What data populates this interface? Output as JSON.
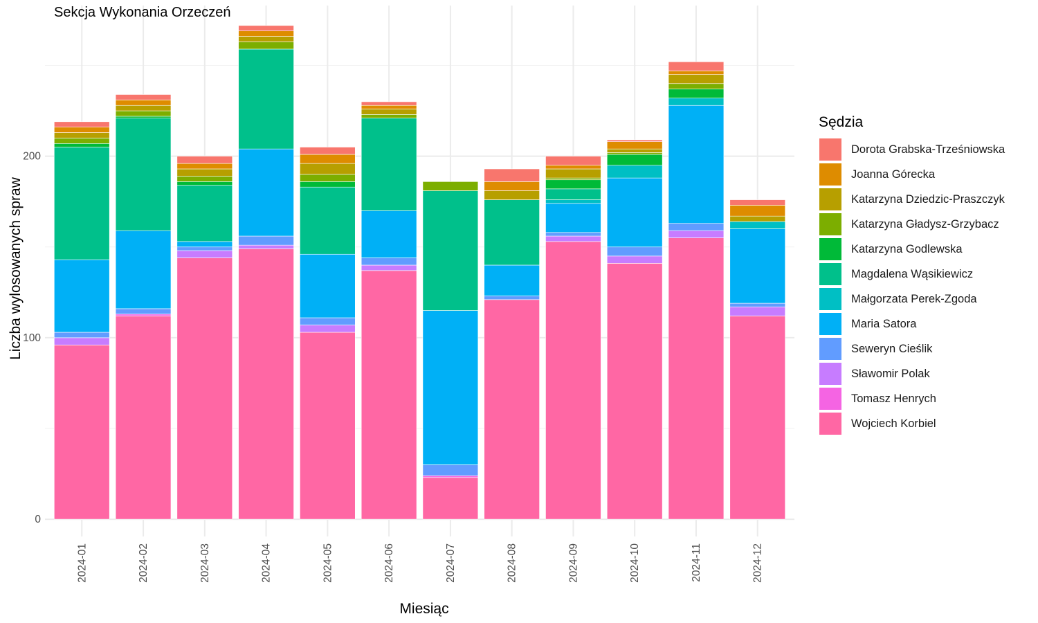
{
  "chart_data": {
    "type": "bar",
    "stacked": true,
    "title": "Sekcja Wykonania Orzeczeń",
    "xlabel": "Miesiąc",
    "ylabel": "Liczba wylosowanych spraw",
    "ylim": [
      -9.5,
      283
    ],
    "yticks": [
      0,
      100,
      200
    ],
    "grid": true,
    "legend_title": "Sędzia",
    "legend_position": "right",
    "categories": [
      "2024-01",
      "2024-02",
      "2024-03",
      "2024-04",
      "2024-05",
      "2024-06",
      "2024-07",
      "2024-08",
      "2024-09",
      "2024-10",
      "2024-11",
      "2024-12"
    ],
    "series": [
      {
        "name": "Wojciech Korbiel",
        "color": "#FF67A4",
        "values": [
          96,
          112,
          144,
          149,
          103,
          137,
          23,
          121,
          153,
          141,
          155,
          112
        ]
      },
      {
        "name": "Tomasz Henrych",
        "color": "#F564E3",
        "values": [
          0,
          1,
          0,
          0,
          0,
          0,
          1,
          0,
          0,
          0,
          0,
          0
        ]
      },
      {
        "name": "Sławomir Polak",
        "color": "#C77CFF",
        "values": [
          4,
          0,
          4,
          2,
          4,
          3,
          0,
          0,
          3,
          4,
          4,
          5
        ]
      },
      {
        "name": "Seweryn Cieślik",
        "color": "#619CFF",
        "values": [
          3,
          3,
          2,
          5,
          4,
          4,
          6,
          2,
          2,
          5,
          4,
          2
        ]
      },
      {
        "name": "Maria Satora",
        "color": "#00B0F6",
        "values": [
          40,
          43,
          3,
          48,
          35,
          26,
          85,
          17,
          16,
          38,
          65,
          41
        ]
      },
      {
        "name": "Małgorzata Perek-Zgoda",
        "color": "#00BFC4",
        "values": [
          0,
          0,
          0,
          0,
          0,
          0,
          0,
          0,
          2,
          7,
          4,
          4
        ]
      },
      {
        "name": "Magdalena Wąsikiewicz",
        "color": "#00C08B",
        "values": [
          62,
          62,
          31,
          55,
          37,
          51,
          66,
          36,
          6,
          0,
          0,
          0
        ]
      },
      {
        "name": "Katarzyna Godlewska",
        "color": "#00BA38",
        "values": [
          2,
          1,
          2,
          0,
          3,
          0,
          0,
          0,
          5,
          6,
          5,
          0
        ]
      },
      {
        "name": "Katarzyna Gładysz-Grzybacz",
        "color": "#7CAE00",
        "values": [
          3,
          3,
          3,
          4,
          4,
          2,
          5,
          0,
          1,
          1,
          3,
          0
        ]
      },
      {
        "name": "Katarzyna Dziedzic-Praszczyk",
        "color": "#B79F00",
        "values": [
          3,
          3,
          4,
          3,
          6,
          3,
          0,
          5,
          5,
          2,
          5,
          3
        ]
      },
      {
        "name": "Joanna Górecka",
        "color": "#DE8C00",
        "values": [
          3,
          3,
          3,
          3,
          5,
          2,
          0,
          5,
          2,
          4,
          2,
          6
        ]
      },
      {
        "name": "Dorota Grabska-Trześniowska",
        "color": "#F8766D",
        "values": [
          3,
          3,
          4,
          3,
          4,
          2,
          0,
          7,
          5,
          1,
          5,
          3
        ]
      }
    ],
    "legend_order": [
      "Dorota Grabska-Trześniowska",
      "Joanna Górecka",
      "Katarzyna Dziedzic-Praszczyk",
      "Katarzyna Gładysz-Grzybacz",
      "Katarzyna Godlewska",
      "Magdalena Wąsikiewicz",
      "Małgorzata Perek-Zgoda",
      "Maria Satora",
      "Seweryn Cieślik",
      "Sławomir Polak",
      "Tomasz Henrych",
      "Wojciech Korbiel"
    ]
  }
}
